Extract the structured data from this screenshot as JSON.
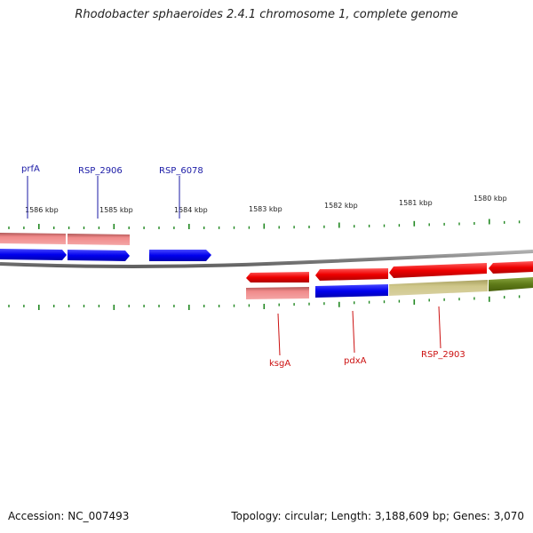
{
  "title": "Rhodobacter sphaeroides 2.4.1 chromosome 1, complete genome",
  "footer": {
    "accession": "Accession: NC_007493",
    "summary": "Topology: circular; Length: 3,188,609 bp; Genes: 3,070"
  },
  "ruler_labels": [
    "1586 kbp",
    "1585 kbp",
    "1584 kbp",
    "1583 kbp",
    "1582 kbp",
    "1581 kbp",
    "1580 kbp"
  ],
  "gene_labels": [
    {
      "name": "prfA",
      "color": "#1a1aa6"
    },
    {
      "name": "RSP_2906",
      "color": "#1a1aa6"
    },
    {
      "name": "RSP_6078",
      "color": "#1a1aa6"
    },
    {
      "name": "ksgA",
      "color": "#cc1111"
    },
    {
      "name": "pdxA",
      "color": "#cc1111"
    },
    {
      "name": "RSP_2903",
      "color": "#cc1111"
    }
  ],
  "colors": {
    "forward_gene": "#1010ee",
    "reverse_gene": "#ee1010",
    "pink_track": "#f08888",
    "khaki_track": "#c8c080",
    "olive_track": "#6a8a20",
    "backbone": "#808080",
    "tick": "#228822"
  }
}
